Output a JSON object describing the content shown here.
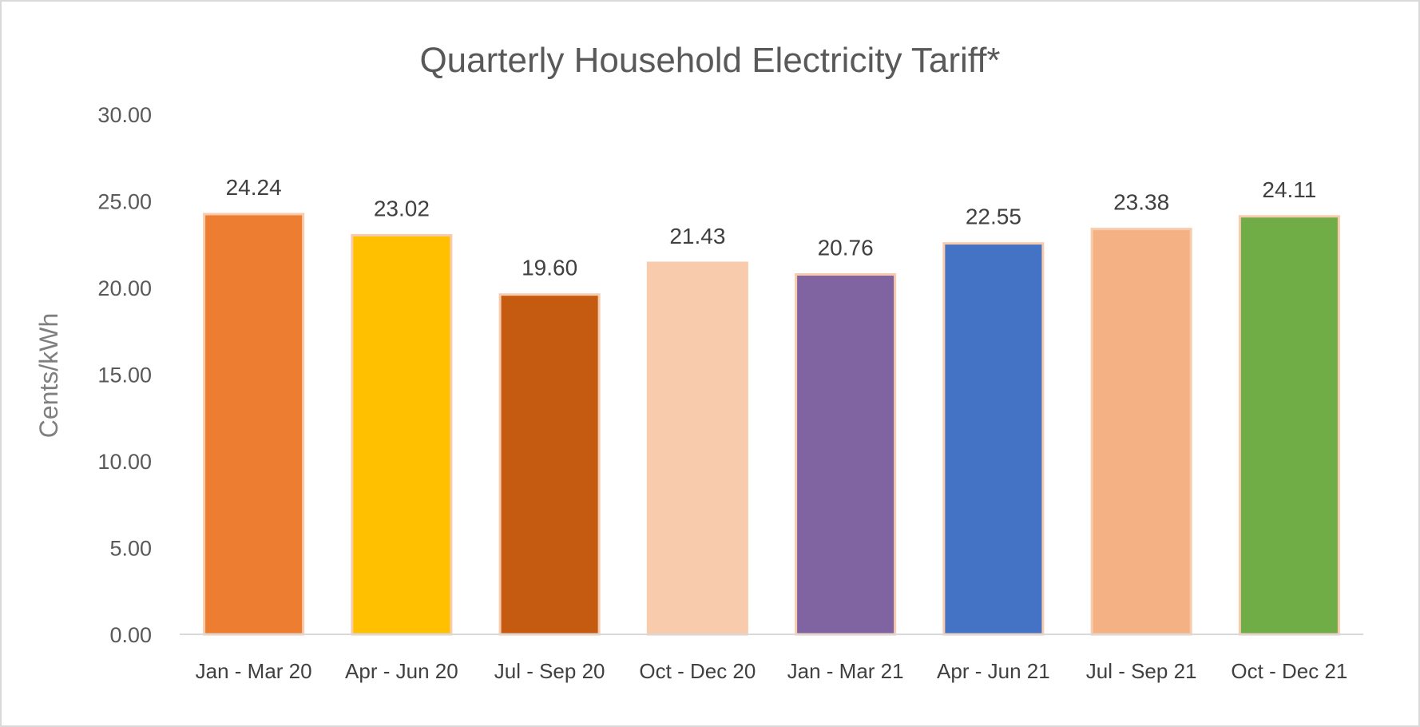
{
  "chart_data": {
    "type": "bar",
    "title": "Quarterly Household Electricity Tariff*",
    "xlabel": "",
    "ylabel": "Cents/kWh",
    "ylim": [
      0,
      30
    ],
    "yticks": [
      "0.00",
      "5.00",
      "10.00",
      "15.00",
      "20.00",
      "25.00",
      "30.00"
    ],
    "grid": false,
    "categories": [
      "Jan - Mar 20",
      "Apr - Jun 20",
      "Jul - Sep 20",
      "Oct - Dec 20",
      "Jan - Mar 21",
      "Apr - Jun 21",
      "Jul - Sep 21",
      "Oct - Dec 21"
    ],
    "values": [
      24.24,
      23.02,
      19.6,
      21.43,
      20.76,
      22.55,
      23.38,
      24.11
    ],
    "data_labels": [
      "24.24",
      "23.02",
      "19.60",
      "21.43",
      "20.76",
      "22.55",
      "23.38",
      "24.11"
    ],
    "colors": [
      "#ED7D31",
      "#FFC000",
      "#C55A11",
      "#F8CBAD",
      "#8064A2",
      "#4472C4",
      "#F4B183",
      "#70AD47"
    ],
    "bar_border_color": "#F8CBAD"
  }
}
